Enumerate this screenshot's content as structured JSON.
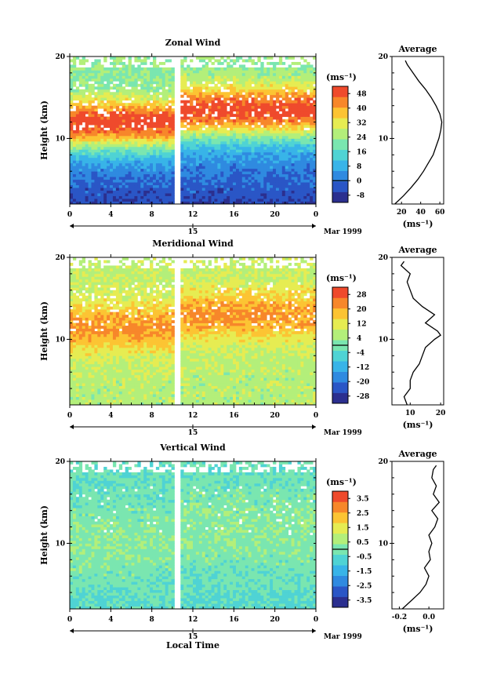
{
  "chart_data": [
    {
      "type": "heatmap",
      "title": "Zonal Wind",
      "ylabel": "Height (km)",
      "xlabel": "",
      "ylim": [
        2,
        20
      ],
      "xlim": [
        0,
        24
      ],
      "x_ticks": [
        "0",
        "4",
        "8",
        "12",
        "16",
        "20",
        "0"
      ],
      "y_ticks": [
        "20",
        "10"
      ],
      "date_tick": "15",
      "date_label": "Mar 1999",
      "colorbar_unit": "(ms⁻¹)",
      "colorbar_levels": [
        "48",
        "40",
        "32",
        "24",
        "16",
        "8",
        "0",
        "-8"
      ],
      "colorbar_range": [
        -12,
        52
      ],
      "colorbar_zero": 0,
      "field": {
        "jet_center_km": 12,
        "jet_width_km": 3.2,
        "peak": 50,
        "surface": -6,
        "top": 24
      },
      "profile": {
        "title": "Average",
        "xlabel": "(ms⁻¹)",
        "x_ticks": [
          "20",
          "40",
          "60"
        ],
        "xlim": [
          10,
          64
        ],
        "ylim": [
          2,
          20
        ],
        "y_ticks": [
          "20",
          "10"
        ],
        "height": [
          2,
          3,
          4,
          5,
          6,
          7,
          8,
          9,
          10,
          11,
          12,
          13,
          14,
          15,
          16,
          17,
          18,
          19,
          19.5
        ],
        "value": [
          13,
          22,
          30,
          37,
          43,
          48,
          53,
          56,
          59,
          61,
          62,
          60,
          56,
          51,
          45,
          38,
          32,
          26,
          24
        ]
      }
    },
    {
      "type": "heatmap",
      "title": "Meridional Wind",
      "ylabel": "Height (km)",
      "xlabel": "",
      "ylim": [
        2,
        20
      ],
      "xlim": [
        0,
        24
      ],
      "x_ticks": [
        "0",
        "4",
        "8",
        "12",
        "16",
        "20",
        "0"
      ],
      "y_ticks": [
        "20",
        "10"
      ],
      "date_tick": "15",
      "date_label": "Mar 1999",
      "colorbar_unit": "(ms⁻¹)",
      "colorbar_levels": [
        "28",
        "20",
        "12",
        "4",
        "-4",
        "-12",
        "-20",
        "-28"
      ],
      "colorbar_range": [
        -32,
        32
      ],
      "colorbar_zero": 0,
      "field": {
        "jet_center_km": 11.5,
        "jet_width_km": 3.0,
        "peak": 22,
        "surface": 6,
        "top": 8
      },
      "profile": {
        "title": "Average",
        "xlabel": "(ms⁻¹)",
        "x_ticks": [
          "10",
          "20"
        ],
        "xlim": [
          4,
          21
        ],
        "ylim": [
          2,
          20
        ],
        "y_ticks": [
          "20",
          "10"
        ],
        "height": [
          2,
          3,
          4,
          5,
          6,
          7,
          8,
          9,
          10,
          10.5,
          11,
          12,
          13,
          14,
          15,
          16,
          17,
          18,
          19,
          19.5
        ],
        "value": [
          9,
          8,
          10,
          10,
          11,
          13,
          14,
          15,
          18,
          20,
          19,
          15,
          18,
          14,
          11,
          10,
          9,
          10,
          7,
          8
        ]
      }
    },
    {
      "type": "heatmap",
      "title": "Vertical Wind",
      "ylabel": "Height (km)",
      "xlabel": "Local Time",
      "ylim": [
        2,
        20
      ],
      "xlim": [
        0,
        24
      ],
      "x_ticks": [
        "0",
        "4",
        "8",
        "12",
        "16",
        "20",
        "0"
      ],
      "y_ticks": [
        "20",
        "10"
      ],
      "date_tick": "15",
      "date_label": "Mar 1999",
      "colorbar_unit": "(ms⁻¹)",
      "colorbar_levels": [
        "3.5",
        "2.5",
        "1.5",
        "0.5",
        "-0.5",
        "-1.5",
        "-2.5",
        "-3.5"
      ],
      "colorbar_range": [
        -4,
        4
      ],
      "colorbar_zero": 0,
      "field": {
        "jet_center_km": 10,
        "jet_width_km": 6,
        "peak": 0.2,
        "surface": -0.6,
        "top": -0.3
      },
      "profile": {
        "title": "Average",
        "xlabel": "(ms⁻¹)",
        "x_ticks": [
          "-0.2",
          "0.0"
        ],
        "xlim": [
          -0.25,
          0.1
        ],
        "ylim": [
          2,
          20
        ],
        "y_ticks": [
          "20",
          "10"
        ],
        "height": [
          2,
          3,
          4,
          5,
          6,
          7,
          8,
          9,
          10,
          11,
          12,
          13,
          14,
          15,
          16,
          17,
          18,
          19,
          19.5
        ],
        "value": [
          -0.18,
          -0.12,
          -0.06,
          -0.02,
          0.0,
          -0.03,
          0.01,
          0.0,
          0.02,
          0.0,
          0.04,
          0.06,
          0.02,
          0.07,
          0.03,
          0.05,
          0.02,
          0.03,
          0.05
        ]
      }
    }
  ]
}
